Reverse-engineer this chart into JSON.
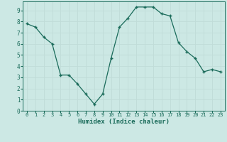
{
  "x": [
    0,
    1,
    2,
    3,
    4,
    5,
    6,
    7,
    8,
    9,
    10,
    11,
    12,
    13,
    14,
    15,
    16,
    17,
    18,
    19,
    20,
    21,
    22,
    23
  ],
  "y": [
    7.8,
    7.5,
    6.6,
    6.0,
    3.2,
    3.2,
    2.4,
    1.5,
    0.6,
    1.5,
    4.7,
    7.5,
    8.3,
    9.3,
    9.3,
    9.3,
    8.7,
    8.5,
    6.1,
    5.3,
    4.7,
    3.5,
    3.7,
    3.5
  ],
  "xlabel": "Humidex (Indice chaleur)",
  "xlim": [
    -0.5,
    23.5
  ],
  "ylim": [
    0,
    9.8
  ],
  "yticks": [
    0,
    1,
    2,
    3,
    4,
    5,
    6,
    7,
    8,
    9
  ],
  "xticks": [
    0,
    1,
    2,
    3,
    4,
    5,
    6,
    7,
    8,
    9,
    10,
    11,
    12,
    13,
    14,
    15,
    16,
    17,
    18,
    19,
    20,
    21,
    22,
    23
  ],
  "line_color": "#1a6b5a",
  "marker_color": "#1a6b5a",
  "bg_color": "#cce8e4",
  "grid_color": "#c0dcd8",
  "label_color": "#1a6b5a",
  "tick_color": "#1a6b5a",
  "spine_color": "#1a6b5a"
}
